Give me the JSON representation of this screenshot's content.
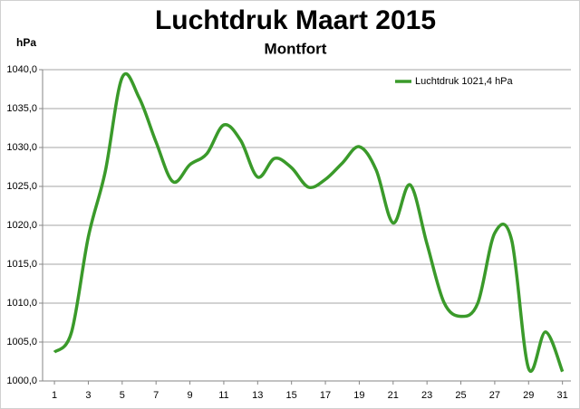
{
  "chart_data": {
    "type": "line",
    "title": "Luchtdruk Maart 2015",
    "subtitle": "Montfort",
    "y_label": "hPa",
    "x": [
      1,
      2,
      3,
      4,
      5,
      6,
      7,
      8,
      9,
      10,
      11,
      12,
      13,
      14,
      15,
      16,
      17,
      18,
      19,
      20,
      21,
      22,
      23,
      24,
      25,
      26,
      27,
      28,
      29,
      30,
      31
    ],
    "series": [
      {
        "name": "Luchtdruk 1021,4 hPa",
        "color": "#3a9a2a",
        "values": [
          1003.7,
          1006.2,
          1018.5,
          1026.9,
          1039.0,
          1036.4,
          1030.7,
          1025.6,
          1027.8,
          1029.2,
          1032.9,
          1030.9,
          1026.2,
          1028.6,
          1027.4,
          1024.9,
          1025.9,
          1028.0,
          1030.1,
          1027.1,
          1020.3,
          1025.2,
          1017.6,
          1010.1,
          1008.3,
          1010.0,
          1019.0,
          1018.1,
          1001.6,
          1006.3,
          1001.2
        ]
      }
    ],
    "xlim": [
      0.3,
      31.5
    ],
    "xticks": [
      1,
      3,
      5,
      7,
      9,
      11,
      13,
      15,
      17,
      19,
      21,
      23,
      25,
      27,
      29,
      31
    ],
    "ylim": [
      1000,
      1040
    ],
    "yticks": [
      {
        "value": 1000,
        "label": "1000,0"
      },
      {
        "value": 1005,
        "label": "1005,0"
      },
      {
        "value": 1010,
        "label": "1010,0"
      },
      {
        "value": 1015,
        "label": "1015,0"
      },
      {
        "value": 1020,
        "label": "1020,0"
      },
      {
        "value": 1025,
        "label": "1025,0"
      },
      {
        "value": 1030,
        "label": "1030,0"
      },
      {
        "value": 1035,
        "label": "1035,0"
      },
      {
        "value": 1040,
        "label": "1040,0"
      }
    ],
    "grid": true,
    "legend": "top-right"
  }
}
